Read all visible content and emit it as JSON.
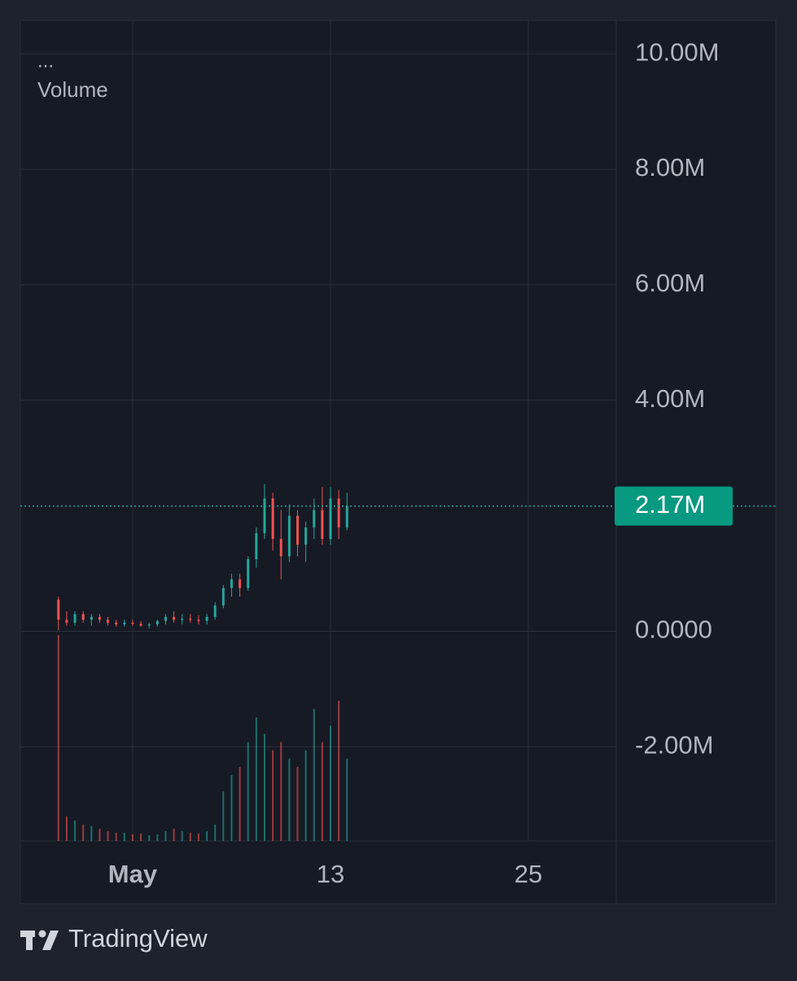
{
  "chart_data": {
    "type": "candlestick",
    "menu": "...",
    "legend_title": "Volume",
    "x": [
      -3.5,
      -3,
      -2.5,
      -2,
      -1.5,
      -1,
      -0.5,
      0,
      0.5,
      1,
      1.5,
      2,
      2.5,
      3,
      3.5,
      4,
      4.5,
      5,
      5.5,
      6,
      6.5,
      7,
      7.5,
      8,
      8.5,
      9,
      9.5,
      10,
      10.5,
      11,
      11.5,
      12,
      12.5,
      13,
      13.5,
      14
    ],
    "open": [
      0.55,
      0.2,
      0.15,
      0.3,
      0.2,
      0.25,
      0.2,
      0.15,
      0.12,
      0.15,
      0.13,
      0.1,
      0.12,
      0.18,
      0.25,
      0.2,
      0.22,
      0.2,
      0.18,
      0.25,
      0.45,
      0.75,
      0.9,
      0.75,
      1.25,
      1.7,
      2.3,
      1.6,
      1.3,
      2.0,
      1.5,
      1.8,
      2.1,
      1.6,
      2.3,
      1.8
    ],
    "high": [
      0.6,
      0.35,
      0.35,
      0.35,
      0.3,
      0.3,
      0.25,
      0.2,
      0.2,
      0.2,
      0.18,
      0.15,
      0.2,
      0.3,
      0.35,
      0.3,
      0.3,
      0.28,
      0.3,
      0.5,
      0.8,
      1.0,
      1.0,
      1.3,
      1.8,
      2.55,
      2.4,
      2.1,
      2.2,
      2.1,
      1.9,
      2.3,
      2.5,
      2.5,
      2.45,
      2.4
    ],
    "low": [
      0.02,
      0.1,
      0.1,
      0.15,
      0.1,
      0.15,
      0.1,
      0.08,
      0.08,
      0.1,
      0.08,
      0.05,
      0.08,
      0.12,
      0.15,
      0.12,
      0.15,
      0.12,
      0.12,
      0.2,
      0.4,
      0.6,
      0.6,
      0.7,
      1.1,
      1.6,
      1.4,
      0.9,
      1.2,
      1.3,
      1.2,
      1.6,
      1.5,
      1.5,
      1.6,
      1.75
    ],
    "close": [
      0.2,
      0.15,
      0.3,
      0.2,
      0.25,
      0.2,
      0.15,
      0.12,
      0.15,
      0.13,
      0.1,
      0.12,
      0.18,
      0.25,
      0.2,
      0.22,
      0.2,
      0.18,
      0.25,
      0.45,
      0.75,
      0.9,
      0.75,
      1.25,
      1.7,
      2.3,
      1.6,
      1.3,
      2.0,
      1.5,
      1.8,
      2.1,
      1.6,
      2.3,
      1.8,
      2.17
    ],
    "volume": [
      250,
      30,
      25,
      20,
      18,
      15,
      12,
      10,
      10,
      8,
      9,
      7,
      8,
      12,
      15,
      12,
      10,
      9,
      12,
      20,
      60,
      80,
      90,
      120,
      150,
      130,
      110,
      120,
      100,
      90,
      110,
      160,
      120,
      140,
      170,
      100
    ],
    "up_color": "#26a69a",
    "down_color": "#ef5350",
    "xlim": [
      -5.81,
      30.33
    ],
    "xticks": [
      {
        "value": 1,
        "label": "May"
      },
      {
        "value": 13,
        "label": "13"
      },
      {
        "value": 25,
        "label": "25"
      }
    ],
    "ylim": [
      -3.63,
      10.58
    ],
    "yticks": [
      {
        "value": 10,
        "label": "10.00M"
      },
      {
        "value": 8,
        "label": "8.00M"
      },
      {
        "value": 6,
        "label": "6.00M"
      },
      {
        "value": 4,
        "label": "4.00M"
      },
      {
        "value": 0,
        "label": "0.0000"
      },
      {
        "value": -2,
        "label": "-2.00M"
      }
    ],
    "last_price": {
      "value": 2.17,
      "label": "2.17M"
    },
    "grid": true
  },
  "footer": {
    "brand": "TradingView"
  }
}
